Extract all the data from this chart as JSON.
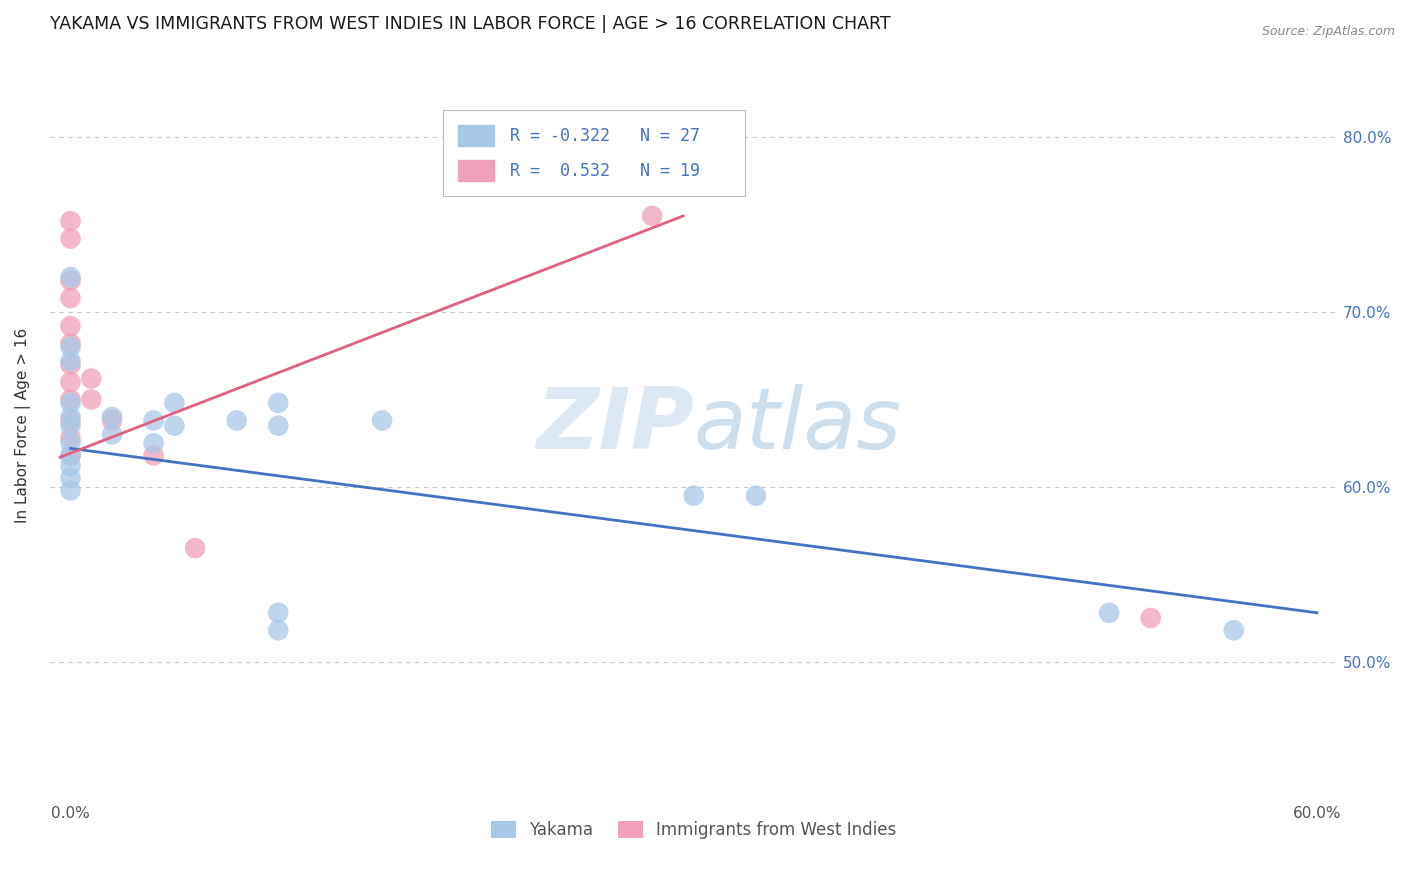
{
  "title": "YAKAMA VS IMMIGRANTS FROM WEST INDIES IN LABOR FORCE | AGE > 16 CORRELATION CHART",
  "source_text": "Source: ZipAtlas.com",
  "ylabel": "In Labor Force | Age > 16",
  "xlim": [
    -0.01,
    0.61
  ],
  "ylim": [
    0.42,
    0.85
  ],
  "ytick_positions": [
    0.5,
    0.6,
    0.7,
    0.8
  ],
  "xtick_positions": [
    0.0,
    0.1,
    0.2,
    0.3,
    0.4,
    0.5,
    0.6
  ],
  "grid_color": "#c8c8c8",
  "background_color": "#ffffff",
  "watermark_zip": "ZIP",
  "watermark_atlas": "atlas",
  "legend_r1": "R = -0.322",
  "legend_n1": "N = 27",
  "legend_r2": "R =  0.532",
  "legend_n2": "N = 19",
  "blue_color": "#a8c8e8",
  "pink_color": "#f0a0b8",
  "line_blue": "#4472c4",
  "line_pink": "#e06080",
  "yakama_points": [
    [
      0.0,
      0.72
    ],
    [
      0.0,
      0.68
    ],
    [
      0.0,
      0.672
    ],
    [
      0.0,
      0.648
    ],
    [
      0.0,
      0.64
    ],
    [
      0.0,
      0.635
    ],
    [
      0.0,
      0.625
    ],
    [
      0.0,
      0.618
    ],
    [
      0.0,
      0.612
    ],
    [
      0.0,
      0.605
    ],
    [
      0.0,
      0.598
    ],
    [
      0.02,
      0.64
    ],
    [
      0.02,
      0.63
    ],
    [
      0.04,
      0.638
    ],
    [
      0.04,
      0.625
    ],
    [
      0.05,
      0.648
    ],
    [
      0.05,
      0.635
    ],
    [
      0.08,
      0.638
    ],
    [
      0.1,
      0.648
    ],
    [
      0.1,
      0.635
    ],
    [
      0.15,
      0.638
    ],
    [
      0.3,
      0.595
    ],
    [
      0.33,
      0.595
    ],
    [
      0.5,
      0.528
    ],
    [
      0.56,
      0.518
    ],
    [
      0.1,
      0.528
    ],
    [
      0.1,
      0.518
    ]
  ],
  "westindies_points": [
    [
      0.0,
      0.752
    ],
    [
      0.0,
      0.742
    ],
    [
      0.0,
      0.718
    ],
    [
      0.0,
      0.708
    ],
    [
      0.0,
      0.692
    ],
    [
      0.0,
      0.682
    ],
    [
      0.0,
      0.67
    ],
    [
      0.0,
      0.66
    ],
    [
      0.0,
      0.65
    ],
    [
      0.0,
      0.638
    ],
    [
      0.0,
      0.628
    ],
    [
      0.0,
      0.618
    ],
    [
      0.01,
      0.662
    ],
    [
      0.01,
      0.65
    ],
    [
      0.02,
      0.638
    ],
    [
      0.04,
      0.618
    ],
    [
      0.06,
      0.565
    ],
    [
      0.52,
      0.525
    ],
    [
      0.28,
      0.755
    ]
  ],
  "blue_line_x": [
    0.0,
    0.6
  ],
  "blue_line_y": [
    0.622,
    0.528
  ],
  "pink_line_x": [
    -0.005,
    0.295
  ],
  "pink_line_y": [
    0.617,
    0.755
  ],
  "legend_text_color": "#4472c4",
  "title_fontsize": 12.5,
  "axis_label_fontsize": 11,
  "tick_fontsize": 11,
  "legend_label1": "Yakama",
  "legend_label2": "Immigrants from West Indies"
}
